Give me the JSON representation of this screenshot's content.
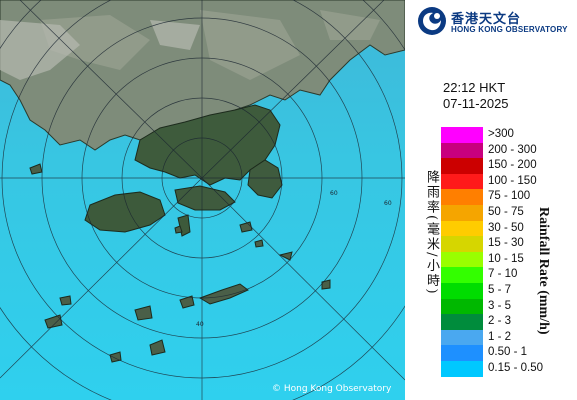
{
  "map": {
    "copyright": "© Hong Kong Observatory",
    "range_ring_labels": [
      "60",
      "60",
      "40"
    ]
  },
  "logo": {
    "name_cn": "香港天文台",
    "name_en": "HONG KONG OBSERVATORY",
    "emblem": "hko-emblem-icon"
  },
  "timestamp": {
    "time": "22:12 HKT",
    "date": "07-11-2025"
  },
  "legend": {
    "title_cn": "降雨率(毫米/小時)",
    "title_en": "Rainfall Rate (mm/h)",
    "items": [
      {
        "label": ">300",
        "color": "#ff00ff"
      },
      {
        "label": "200 - 300",
        "color": "#c8007e"
      },
      {
        "label": "150 - 200",
        "color": "#cc0000"
      },
      {
        "label": "100 - 150",
        "color": "#ff1a1a"
      },
      {
        "label": "75 - 100",
        "color": "#ff7f00"
      },
      {
        "label": "50 - 75",
        "color": "#f5a500"
      },
      {
        "label": "30 - 50",
        "color": "#ffcc00"
      },
      {
        "label": "15 - 30",
        "color": "#d6d600"
      },
      {
        "label": "10 - 15",
        "color": "#99ff00"
      },
      {
        "label": "7 - 10",
        "color": "#33ff00"
      },
      {
        "label": "5 - 7",
        "color": "#00dd00"
      },
      {
        "label": "3 - 5",
        "color": "#00b800"
      },
      {
        "label": "2 - 3",
        "color": "#008c3c"
      },
      {
        "label": "1 - 2",
        "color": "#4aa8f0"
      },
      {
        "label": "0.50 - 1",
        "color": "#1e90ff"
      },
      {
        "label": "0.15 - 0.50",
        "color": "#00c8ff"
      }
    ]
  }
}
